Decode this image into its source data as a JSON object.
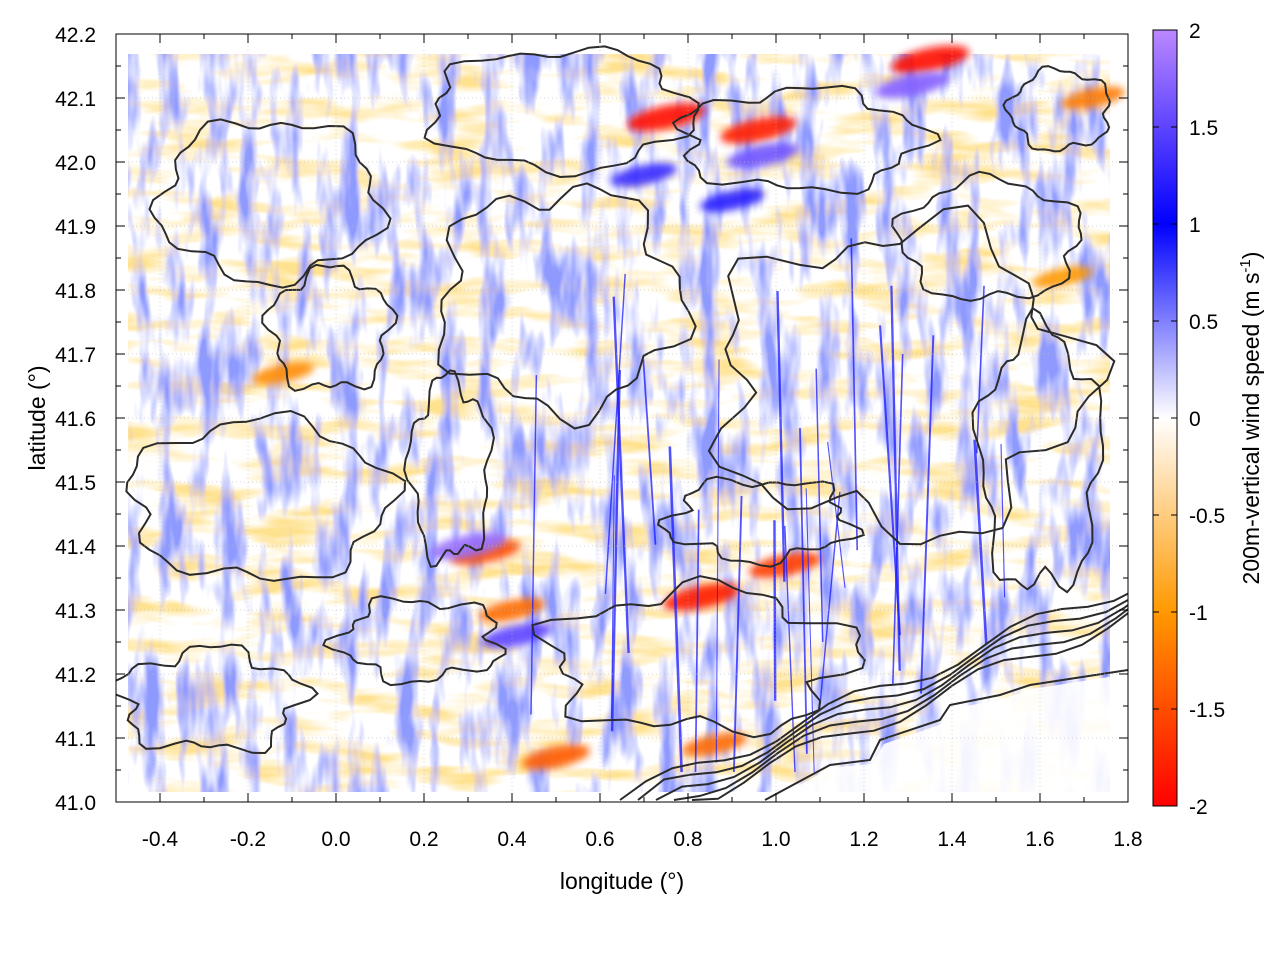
{
  "chart_data": {
    "type": "heatmap",
    "title": "",
    "xlabel": "longitude (°)",
    "ylabel": "latitude (°)",
    "xlim": [
      -0.5,
      1.8
    ],
    "ylim": [
      41.0,
      42.2
    ],
    "x_ticks": [
      "-0.4",
      "-0.2",
      "0.0",
      "0.2",
      "0.4",
      "0.6",
      "0.8",
      "1.0",
      "1.2",
      "1.4",
      "1.6",
      "1.8"
    ],
    "x_tick_values": [
      -0.4,
      -0.2,
      0.0,
      0.2,
      0.4,
      0.6,
      0.8,
      1.0,
      1.2,
      1.4,
      1.6,
      1.8
    ],
    "y_ticks": [
      "41.0",
      "41.1",
      "41.2",
      "41.3",
      "41.4",
      "41.5",
      "41.6",
      "41.7",
      "41.8",
      "41.9",
      "42.0",
      "42.1",
      "42.2"
    ],
    "y_tick_values": [
      41.0,
      41.1,
      41.2,
      41.3,
      41.4,
      41.5,
      41.6,
      41.7,
      41.8,
      41.9,
      42.0,
      42.1,
      42.2
    ],
    "grid": true,
    "colorbar": {
      "label_main": "200m-vertical wind speed (m s",
      "label_sup": "-1",
      "label_end": ")",
      "range": [
        -2,
        2
      ],
      "ticks": [
        "2",
        "1.5",
        "1",
        "0.5",
        "0",
        "-0.5",
        "-1",
        "-1.5",
        "-2"
      ],
      "tick_values": [
        2,
        1.5,
        1,
        0.5,
        0,
        -0.5,
        -1,
        -1.5,
        -2
      ],
      "colors": [
        "#ff0000",
        "#ff9900",
        "#ffffff",
        "#0000ff",
        "#bb88ff"
      ],
      "color_stops": [
        -2,
        -1,
        0,
        1,
        2
      ]
    },
    "field_description": "Vertical wind speed field over longitude/latitude with terrain contour lines overlaid",
    "hotspots": [
      {
        "lon": 0.75,
        "lat": 42.07,
        "value": -1.9
      },
      {
        "lon": 0.96,
        "lat": 42.05,
        "value": -1.8
      },
      {
        "lon": 1.35,
        "lat": 42.16,
        "value": -1.9
      },
      {
        "lon": 0.83,
        "lat": 41.32,
        "value": -1.8
      },
      {
        "lon": 1.02,
        "lat": 41.37,
        "value": -1.6
      },
      {
        "lon": 0.34,
        "lat": 41.39,
        "value": -1.5
      },
      {
        "lon": 0.4,
        "lat": 41.3,
        "value": -1.3
      },
      {
        "lon": 0.5,
        "lat": 41.07,
        "value": -1.4
      },
      {
        "lon": 0.86,
        "lat": 41.09,
        "value": -1.3
      },
      {
        "lon": -0.12,
        "lat": 41.67,
        "value": -1.1
      },
      {
        "lon": 1.65,
        "lat": 41.82,
        "value": -1.0
      },
      {
        "lon": 1.72,
        "lat": 42.1,
        "value": -1.2
      },
      {
        "lon": 0.9,
        "lat": 41.94,
        "value": 1.2
      },
      {
        "lon": 0.7,
        "lat": 41.98,
        "value": 1.3
      },
      {
        "lon": 0.3,
        "lat": 41.4,
        "value": 1.8
      },
      {
        "lon": 1.31,
        "lat": 42.12,
        "value": 1.7
      },
      {
        "lon": 0.97,
        "lat": 42.01,
        "value": 1.6
      },
      {
        "lon": 0.41,
        "lat": 41.26,
        "value": 1.5
      }
    ]
  }
}
